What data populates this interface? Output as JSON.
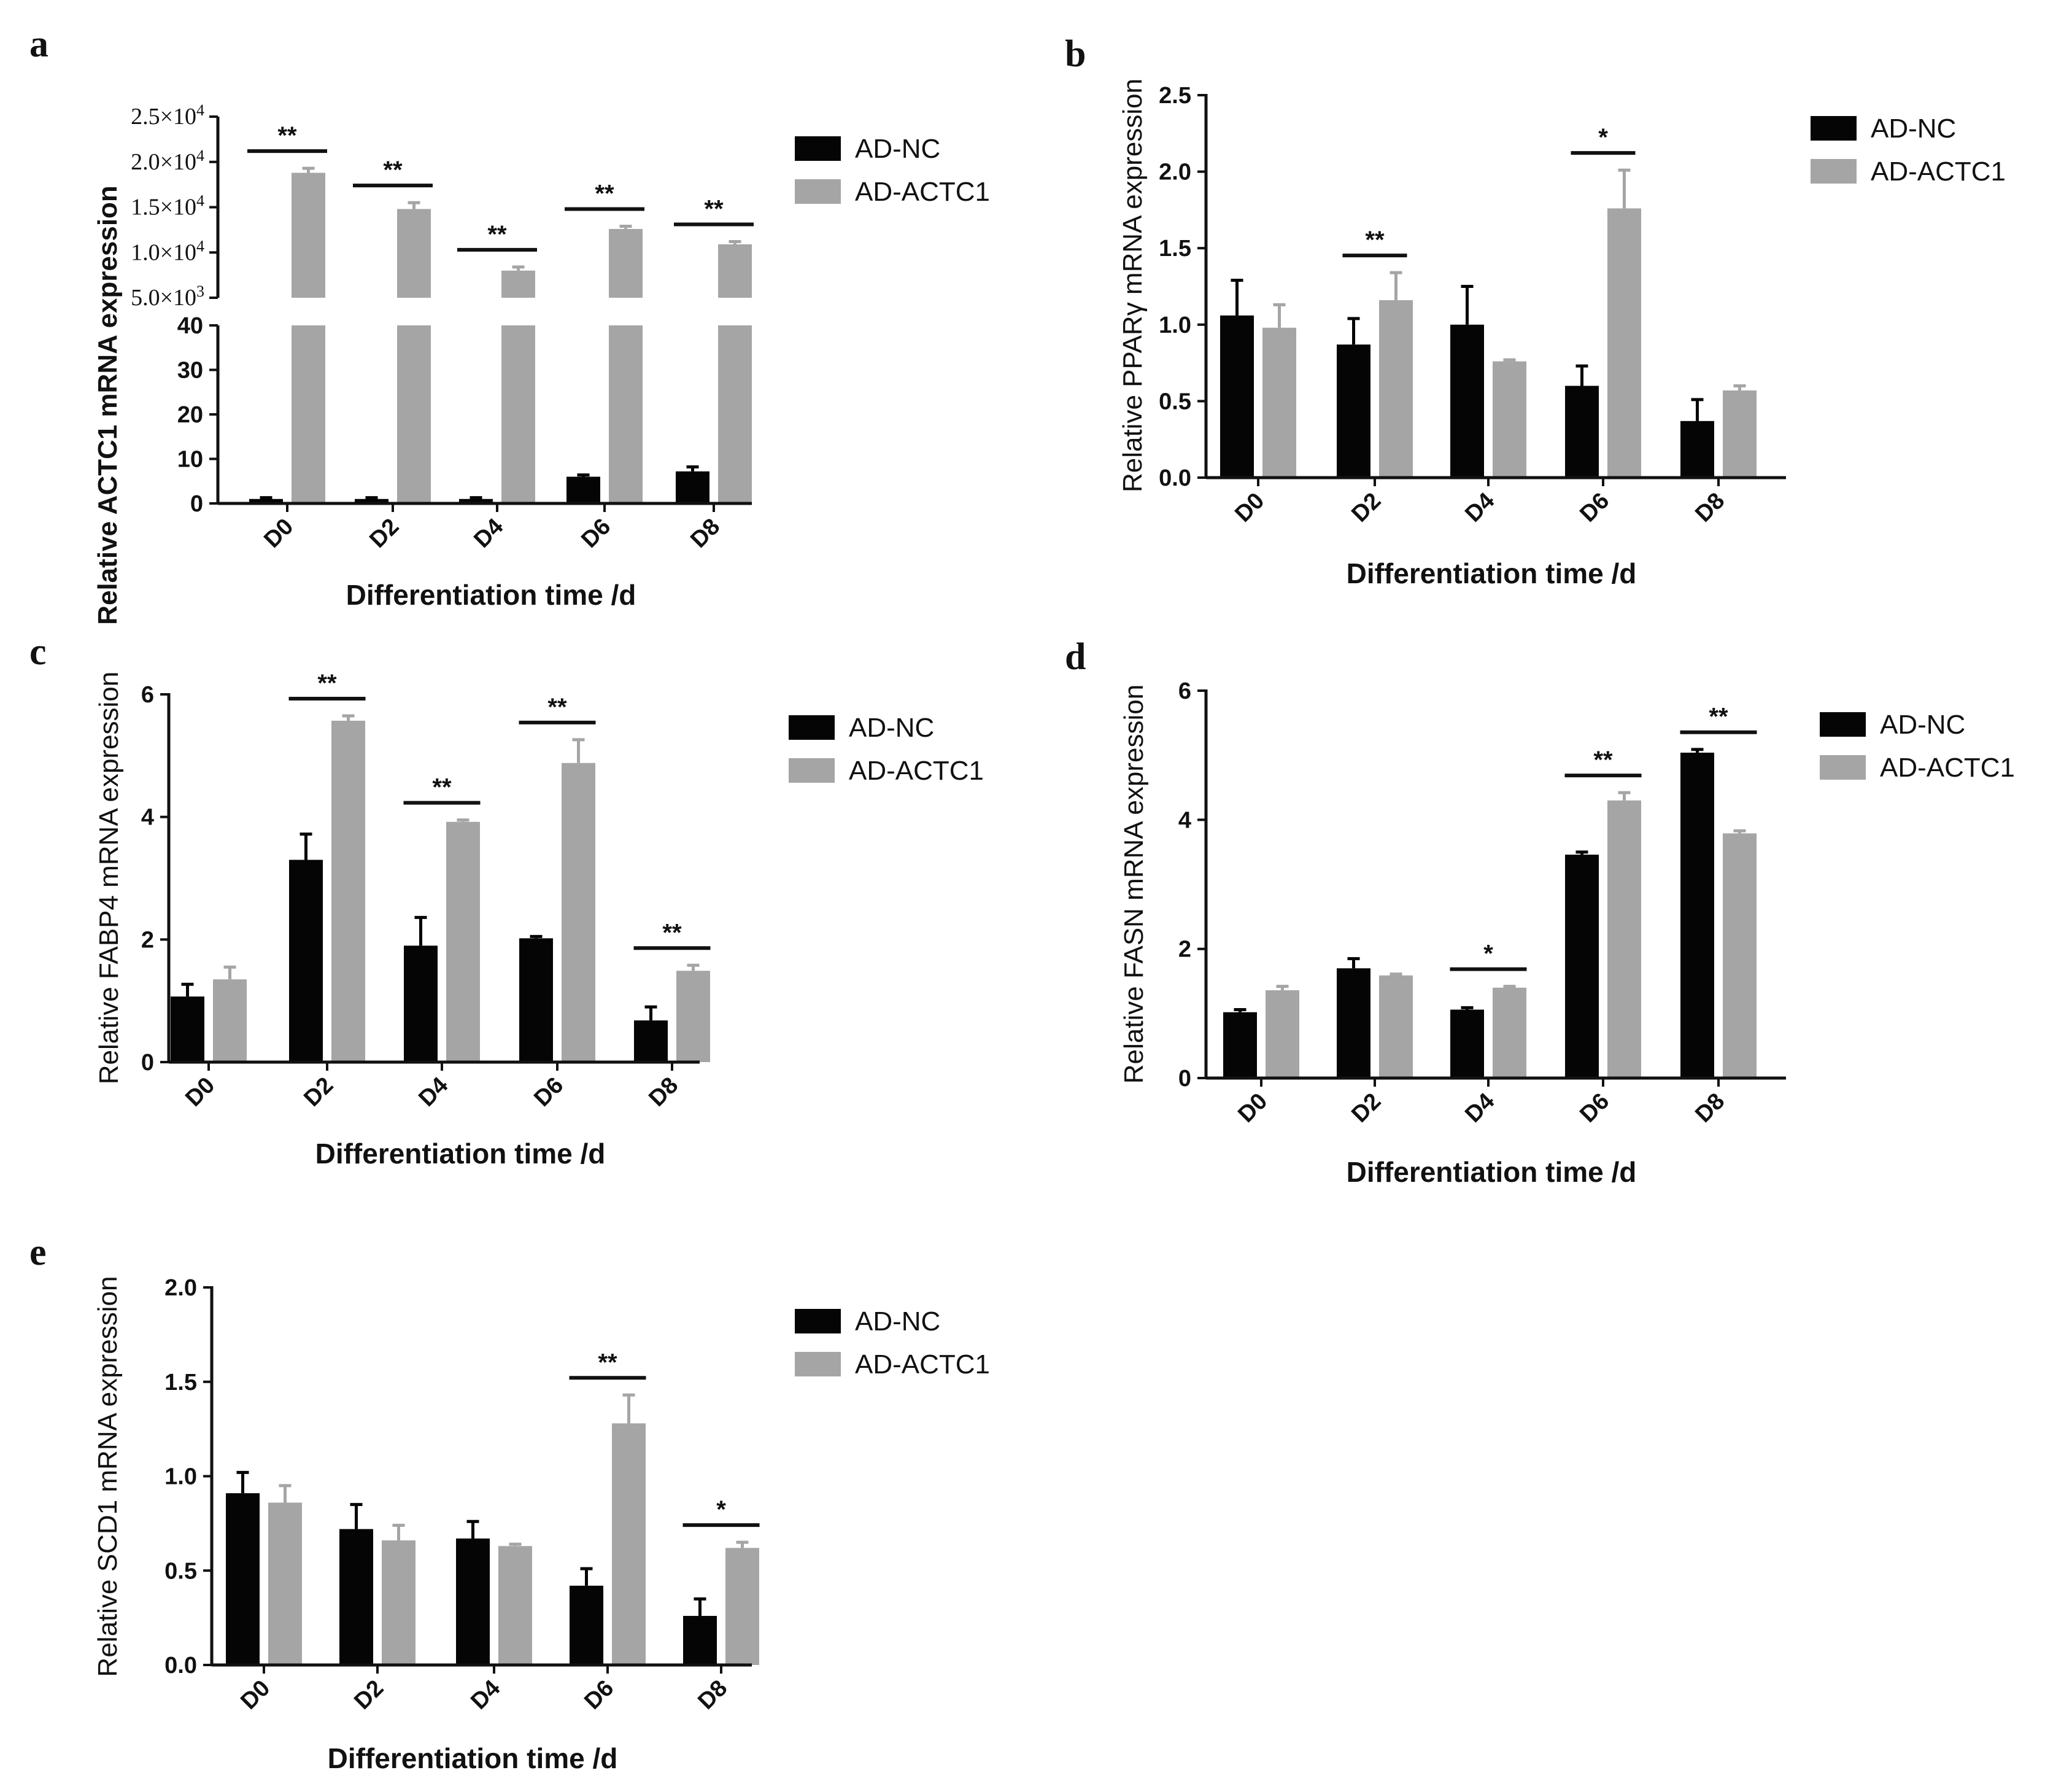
{
  "figure": {
    "colors": {
      "ad_nc": "#050505",
      "ad_actc1": "#a5a5a5",
      "axis": "#111111"
    }
  },
  "chart_data": [
    {
      "id": "a",
      "panel_label": "a",
      "type": "bar",
      "broken_axis": true,
      "categories": [
        "D0",
        "D2",
        "D4",
        "D6",
        "D8"
      ],
      "xlabel": "Differentiation time /d",
      "ylabel": "Relative ACTC1 mRNA expression",
      "ylim_lower": [
        0,
        40
      ],
      "yticks_lower": [
        "0",
        "10",
        "20",
        "30",
        "40"
      ],
      "ylim_upper": [
        5000,
        25000
      ],
      "yticks_upper": [
        {
          "value": 5000,
          "mant": "5.0",
          "base": "×10",
          "exp": "3"
        },
        {
          "value": 10000,
          "mant": "1.0",
          "base": "×10",
          "exp": "4"
        },
        {
          "value": 15000,
          "mant": "1.5",
          "base": "×10",
          "exp": "4"
        },
        {
          "value": 20000,
          "mant": "2.0",
          "base": "×10",
          "exp": "4"
        },
        {
          "value": 25000,
          "mant": "2.5",
          "base": "×10",
          "exp": "4"
        }
      ],
      "legend": [
        "AD-NC",
        "AD-ACTC1"
      ],
      "series": [
        {
          "name": "AD-NC",
          "values": [
            1.0,
            1.0,
            1.0,
            6.0,
            7.2
          ],
          "errors": [
            0.3,
            0.3,
            0.3,
            0.4,
            1.0
          ]
        },
        {
          "name": "AD-ACTC1",
          "values": [
            18800,
            14800,
            8000,
            12600,
            10900
          ],
          "errors": [
            500,
            700,
            400,
            300,
            300
          ]
        }
      ],
      "significance": [
        "**",
        "**",
        "**",
        "**",
        "**"
      ]
    },
    {
      "id": "b",
      "panel_label": "b",
      "type": "bar",
      "categories": [
        "D0",
        "D2",
        "D4",
        "D6",
        "D8"
      ],
      "xlabel": "Differentiation time /d",
      "ylabel": "Relative PPARγ mRNA expression",
      "ylim": [
        0,
        2.5
      ],
      "yticks": [
        "0.0",
        "0.5",
        "1.0",
        "1.5",
        "2.0",
        "2.5"
      ],
      "legend": [
        "AD-NC",
        "AD-ACTC1"
      ],
      "series": [
        {
          "name": "AD-NC",
          "values": [
            1.06,
            0.87,
            1.0,
            0.6,
            0.37
          ],
          "errors": [
            0.23,
            0.17,
            0.25,
            0.13,
            0.14
          ]
        },
        {
          "name": "AD-ACTC1",
          "values": [
            0.98,
            1.16,
            0.76,
            1.76,
            0.57
          ],
          "errors": [
            0.15,
            0.18,
            0.01,
            0.25,
            0.03
          ]
        }
      ],
      "significance": [
        "",
        "**",
        "",
        "*",
        ""
      ]
    },
    {
      "id": "c",
      "panel_label": "c",
      "type": "bar",
      "categories": [
        "D0",
        "D2",
        "D4",
        "D6",
        "D8"
      ],
      "xlabel": "Differentiation time /d",
      "ylabel": "Relative FABP4 mRNA expression",
      "ylim": [
        0,
        6
      ],
      "yticks": [
        "0",
        "2",
        "4",
        "6"
      ],
      "legend": [
        "AD-NC",
        "AD-ACTC1"
      ],
      "series": [
        {
          "name": "AD-NC",
          "values": [
            1.07,
            3.3,
            1.9,
            2.02,
            0.68
          ],
          "errors": [
            0.2,
            0.42,
            0.46,
            0.03,
            0.22
          ]
        },
        {
          "name": "AD-ACTC1",
          "values": [
            1.35,
            5.57,
            3.92,
            4.88,
            1.49
          ],
          "errors": [
            0.2,
            0.08,
            0.03,
            0.38,
            0.09
          ]
        }
      ],
      "significance": [
        "",
        "**",
        "**",
        "**",
        "**"
      ]
    },
    {
      "id": "d",
      "panel_label": "d",
      "type": "bar",
      "categories": [
        "D0",
        "D2",
        "D4",
        "D6",
        "D8"
      ],
      "xlabel": "Differentiation time /d",
      "ylabel": "Relative FASN mRNA expression",
      "ylim": [
        0,
        6
      ],
      "yticks": [
        "0",
        "2",
        "4",
        "6"
      ],
      "legend": [
        "AD-NC",
        "AD-ACTC1"
      ],
      "series": [
        {
          "name": "AD-NC",
          "values": [
            1.02,
            1.7,
            1.06,
            3.46,
            5.04
          ],
          "errors": [
            0.04,
            0.15,
            0.03,
            0.04,
            0.05
          ]
        },
        {
          "name": "AD-ACTC1",
          "values": [
            1.36,
            1.59,
            1.4,
            4.3,
            3.79
          ],
          "errors": [
            0.06,
            0.02,
            0.02,
            0.12,
            0.04
          ]
        }
      ],
      "significance": [
        "",
        "",
        "*",
        "**",
        "**"
      ]
    },
    {
      "id": "e",
      "panel_label": "e",
      "type": "bar",
      "categories": [
        "D0",
        "D2",
        "D4",
        "D6",
        "D8"
      ],
      "xlabel": "Differentiation time /d",
      "ylabel": "Relative SCD1 mRNA expression",
      "ylim": [
        0,
        2.0
      ],
      "yticks": [
        "0.0",
        "0.5",
        "1.0",
        "1.5",
        "2.0"
      ],
      "legend": [
        "AD-NC",
        "AD-ACTC1"
      ],
      "series": [
        {
          "name": "AD-NC",
          "values": [
            0.91,
            0.72,
            0.67,
            0.42,
            0.26
          ],
          "errors": [
            0.11,
            0.13,
            0.09,
            0.09,
            0.09
          ]
        },
        {
          "name": "AD-ACTC1",
          "values": [
            0.86,
            0.66,
            0.63,
            1.28,
            0.62
          ],
          "errors": [
            0.09,
            0.08,
            0.01,
            0.15,
            0.03
          ]
        }
      ],
      "significance": [
        "",
        "",
        "",
        "**",
        "*"
      ]
    }
  ]
}
